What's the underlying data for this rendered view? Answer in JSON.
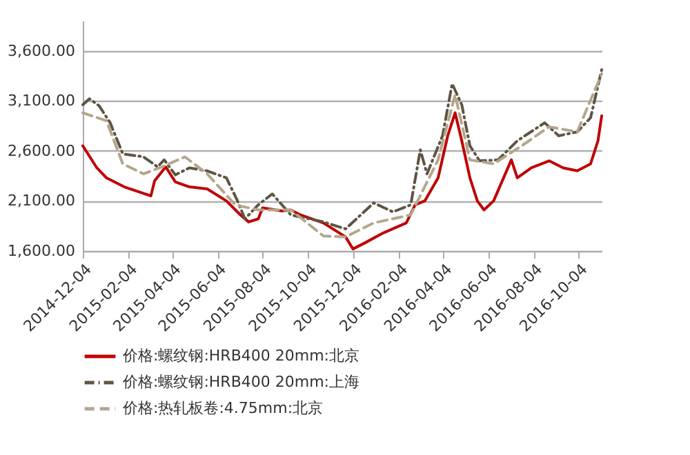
{
  "chart_data": {
    "type": "line",
    "ylim": [
      1600,
      3900
    ],
    "yticks": [
      {
        "value": 1600,
        "label": "1,600.00"
      },
      {
        "value": 2100,
        "label": "2,100.00"
      },
      {
        "value": 2600,
        "label": "2,600.00"
      },
      {
        "value": 3100,
        "label": "3,100.00"
      },
      {
        "value": 3600,
        "label": "3,600.00"
      }
    ],
    "xlim": [
      "2014-12-04",
      "2016-11-04"
    ],
    "xticks": [
      "2014-12-04",
      "2015-02-04",
      "2015-04-04",
      "2015-06-04",
      "2015-08-04",
      "2015-10-04",
      "2015-12-04",
      "2016-02-04",
      "2016-04-04",
      "2016-06-04",
      "2016-08-04",
      "2016-10-04"
    ],
    "grid": "y",
    "legend": "bottom",
    "marker": "none",
    "series": [
      {
        "name": "价格:螺纹钢:HRB400 20mm:北京",
        "color": "#c00000",
        "line_style": "solid",
        "x": [
          "2014-12-04",
          "2014-12-23",
          "2015-01-05",
          "2015-01-29",
          "2015-03-06",
          "2015-03-11",
          "2015-03-26",
          "2015-04-08",
          "2015-04-27",
          "2015-05-21",
          "2015-06-16",
          "2015-07-05",
          "2015-07-16",
          "2015-07-29",
          "2015-08-04",
          "2015-08-30",
          "2015-09-11",
          "2015-09-24",
          "2015-10-25",
          "2015-11-24",
          "2015-12-04",
          "2015-12-20",
          "2016-01-14",
          "2016-02-14",
          "2016-02-26",
          "2016-03-10",
          "2016-03-28",
          "2016-04-10",
          "2016-04-20",
          "2016-04-29",
          "2016-05-10",
          "2016-05-20",
          "2016-05-29",
          "2016-06-11",
          "2016-07-05",
          "2016-07-13",
          "2016-08-01",
          "2016-08-25",
          "2016-09-13",
          "2016-10-02",
          "2016-10-20",
          "2016-10-30",
          "2016-11-04"
        ],
        "values": [
          2650,
          2430,
          2330,
          2240,
          2150,
          2300,
          2440,
          2290,
          2240,
          2220,
          2100,
          1960,
          1890,
          1920,
          2030,
          2000,
          2010,
          1960,
          1880,
          1740,
          1620,
          1680,
          1780,
          1880,
          2060,
          2100,
          2330,
          2750,
          2980,
          2700,
          2330,
          2100,
          2010,
          2100,
          2510,
          2330,
          2430,
          2500,
          2430,
          2400,
          2470,
          2700,
          2950
        ]
      },
      {
        "name": "价格:螺纹钢:HRB400 20mm:上海",
        "color": "#5f5443",
        "line_style": "dashdot",
        "x": [
          "2014-12-04",
          "2014-12-13",
          "2014-12-26",
          "2015-01-10",
          "2015-01-27",
          "2015-02-24",
          "2015-03-15",
          "2015-03-24",
          "2015-04-08",
          "2015-04-27",
          "2015-05-21",
          "2015-06-16",
          "2015-07-01",
          "2015-07-11",
          "2015-07-29",
          "2015-08-17",
          "2015-09-11",
          "2015-10-25",
          "2015-11-24",
          "2016-01-01",
          "2016-01-27",
          "2016-02-20",
          "2016-03-04",
          "2016-03-13",
          "2016-04-03",
          "2016-04-16",
          "2016-04-29",
          "2016-05-10",
          "2016-05-23",
          "2016-06-17",
          "2016-07-13",
          "2016-08-19",
          "2016-09-07",
          "2016-10-02",
          "2016-10-20",
          "2016-11-04"
        ],
        "values": [
          3060,
          3120,
          3050,
          2880,
          2570,
          2540,
          2440,
          2510,
          2360,
          2430,
          2400,
          2330,
          2100,
          1920,
          2060,
          2170,
          1960,
          1890,
          1820,
          2080,
          1990,
          2060,
          2610,
          2370,
          2750,
          3270,
          3060,
          2650,
          2500,
          2510,
          2700,
          2880,
          2750,
          2790,
          2930,
          3410
        ]
      },
      {
        "name": "价格:热轧板卷:4.75mm:北京",
        "color": "#b3a68c",
        "line_style": "dashed",
        "x": [
          "2014-12-04",
          "2015-01-05",
          "2015-01-27",
          "2015-02-24",
          "2015-03-21",
          "2015-04-21",
          "2015-05-21",
          "2015-06-28",
          "2015-07-29",
          "2015-09-11",
          "2015-10-25",
          "2015-11-24",
          "2016-01-01",
          "2016-02-20",
          "2016-03-28",
          "2016-04-20",
          "2016-05-10",
          "2016-06-11",
          "2016-07-19",
          "2016-08-25",
          "2016-10-02",
          "2016-11-04"
        ],
        "values": [
          2980,
          2900,
          2470,
          2370,
          2440,
          2540,
          2370,
          2060,
          2010,
          2010,
          1750,
          1740,
          1880,
          1960,
          2510,
          3160,
          2510,
          2470,
          2650,
          2840,
          2790,
          3370
        ]
      }
    ]
  }
}
